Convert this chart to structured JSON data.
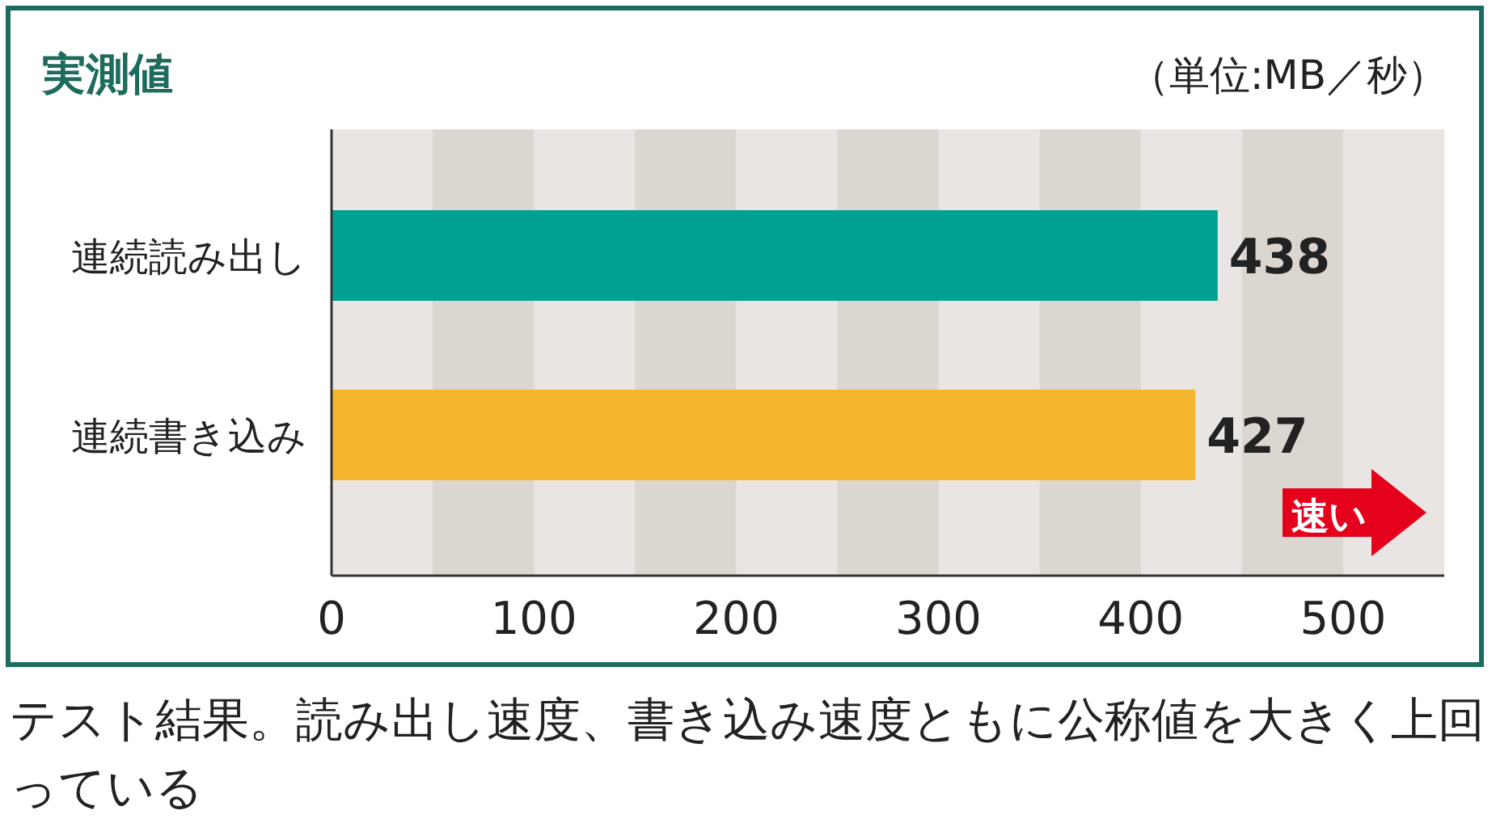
{
  "chart_data": {
    "type": "bar",
    "orientation": "horizontal",
    "title": "実測値",
    "subtitle": "（単位:MB／秒）",
    "categories": [
      "連続読み出し",
      "連続書き込み"
    ],
    "values": [
      438,
      427
    ],
    "colors": [
      "#00a193",
      "#f6b52f"
    ],
    "xlim": [
      0,
      550
    ],
    "xticks": [
      0,
      100,
      200,
      300,
      400,
      500
    ],
    "data_labels": true,
    "bands": [
      {
        "axis": "x",
        "from": 50,
        "to": 100,
        "color": "#dcd6d1"
      },
      {
        "axis": "x",
        "from": 150,
        "to": 200,
        "color": "#dcd6d1"
      },
      {
        "axis": "x",
        "from": 250,
        "to": 300,
        "color": "#dcd6d1"
      },
      {
        "axis": "x",
        "from": 350,
        "to": 400,
        "color": "#dcd6d1"
      },
      {
        "axis": "x",
        "from": 450,
        "to": 500,
        "color": "#dcd6d1"
      }
    ],
    "annotations": [
      "速い",
      "テスト結果。読み出し速度、書き込み速度ともに公称値を大きく上回っている"
    ]
  }
}
